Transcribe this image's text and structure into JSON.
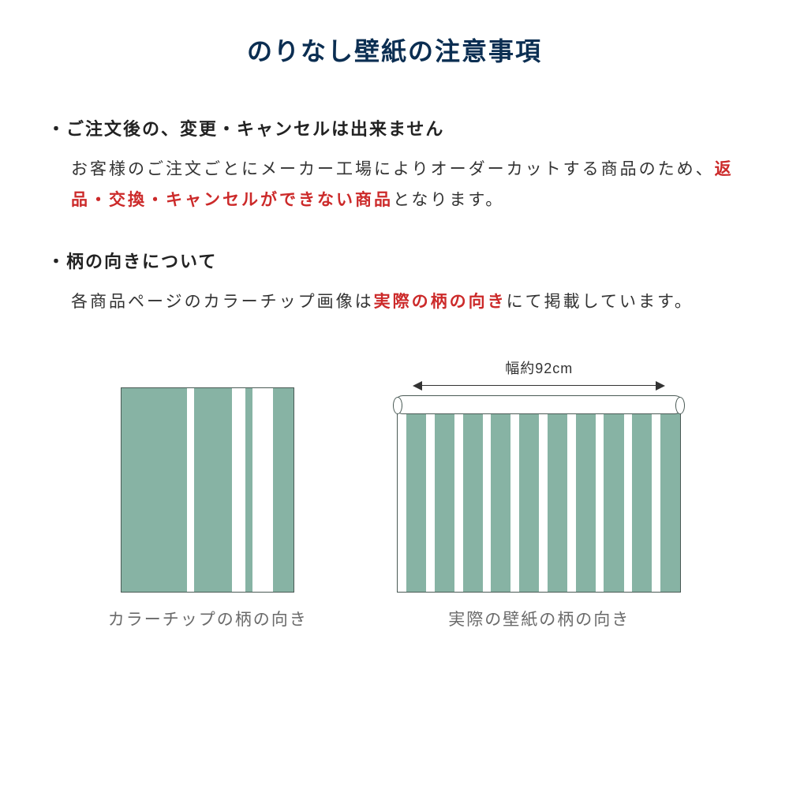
{
  "colors": {
    "title": "#0b2e52",
    "heading": "#222222",
    "body": "#333333",
    "highlight": "#cc2a2a",
    "caption": "#6a6a6a",
    "dim": "#333333",
    "swatch_green": "#87b3a4",
    "swatch_white": "#ffffff",
    "swatch_border": "#4a5a55"
  },
  "title": "のりなし壁紙の注意事項",
  "sections": [
    {
      "header": "・ご注文後の、変更・キャンセルは出来ません",
      "body_pre": "お客様のご注文ごとにメーカー工場によりオーダーカットする商品のため、",
      "body_highlight": "返品・交換・キャンセルができない商品",
      "body_post": "となります。"
    },
    {
      "header": "・柄の向きについて",
      "body_pre": "各商品ページのカラーチップ画像は",
      "body_highlight": "実際の柄の向き",
      "body_post": "にて掲載しています。"
    }
  ],
  "diagram": {
    "width_label": "幅約92cm",
    "left_caption": "カラーチップの柄の向き",
    "right_caption": "実際の壁紙の柄の向き",
    "left_stripes": [
      {
        "w": 38,
        "c": "green"
      },
      {
        "w": 4,
        "c": "white"
      },
      {
        "w": 22,
        "c": "green"
      },
      {
        "w": 8,
        "c": "white"
      },
      {
        "w": 4,
        "c": "green"
      },
      {
        "w": 12,
        "c": "white"
      },
      {
        "w": 12,
        "c": "green"
      }
    ],
    "right_stripes": [
      {
        "w": 3,
        "c": "white"
      },
      {
        "w": 7,
        "c": "green"
      },
      {
        "w": 3,
        "c": "white"
      },
      {
        "w": 7,
        "c": "green"
      },
      {
        "w": 3,
        "c": "white"
      },
      {
        "w": 7,
        "c": "green"
      },
      {
        "w": 3,
        "c": "white"
      },
      {
        "w": 7,
        "c": "green"
      },
      {
        "w": 3,
        "c": "white"
      },
      {
        "w": 7,
        "c": "green"
      },
      {
        "w": 3,
        "c": "white"
      },
      {
        "w": 7,
        "c": "green"
      },
      {
        "w": 3,
        "c": "white"
      },
      {
        "w": 7,
        "c": "green"
      },
      {
        "w": 3,
        "c": "white"
      },
      {
        "w": 7,
        "c": "green"
      },
      {
        "w": 3,
        "c": "white"
      },
      {
        "w": 7,
        "c": "green"
      },
      {
        "w": 3,
        "c": "white"
      },
      {
        "w": 7,
        "c": "green"
      }
    ]
  }
}
